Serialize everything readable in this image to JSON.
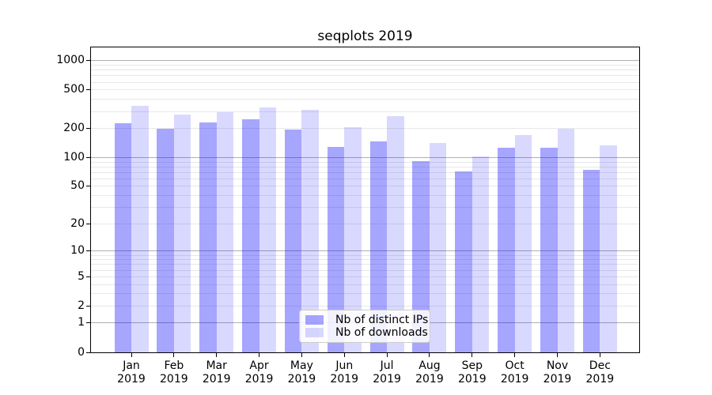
{
  "chart_data": {
    "type": "bar",
    "title": "seqplots 2019",
    "categories": [
      "Jan 2019",
      "Feb 2019",
      "Mar 2019",
      "Apr 2019",
      "May 2019",
      "Jun 2019",
      "Jul 2019",
      "Aug 2019",
      "Sep 2019",
      "Oct 2019",
      "Nov 2019",
      "Dec 2019"
    ],
    "series": [
      {
        "name": "Nb of distinct IPs",
        "color": "rgba(0,0,255,0.35)",
        "values": [
          225,
          200,
          230,
          250,
          195,
          130,
          148,
          92,
          72,
          127,
          127,
          74
        ]
      },
      {
        "name": "Nb of downloads",
        "color": "rgba(0,0,255,0.15)",
        "values": [
          345,
          280,
          295,
          330,
          315,
          205,
          268,
          142,
          102,
          172,
          200,
          134
        ]
      }
    ],
    "yscale": "log1p",
    "ylim": [
      0,
      1373
    ],
    "y_ticks": [
      0,
      1,
      2,
      5,
      10,
      20,
      50,
      100,
      200,
      500,
      1000
    ],
    "y_tick_labels": [
      "0",
      "1",
      "2",
      "5",
      "10",
      "20",
      "50",
      "100",
      "200",
      "500",
      "1000"
    ],
    "grid": {
      "orientation": "horizontal",
      "major_values": [
        1,
        10,
        100,
        1000
      ],
      "minor_values": [
        2,
        3,
        4,
        5,
        6,
        7,
        8,
        9,
        20,
        30,
        40,
        50,
        60,
        70,
        80,
        90,
        200,
        300,
        400,
        500,
        600,
        700,
        800,
        900
      ],
      "major_color": "#b0b0b0",
      "minor_color": "#e8e8e8"
    },
    "legend_position": "inside-lower-center",
    "spine_color": "#000000",
    "background_color": "#ffffff"
  }
}
